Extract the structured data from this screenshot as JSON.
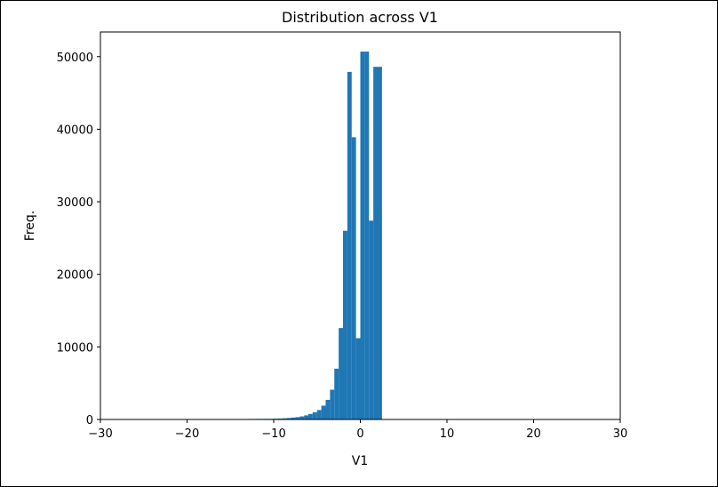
{
  "chart_data": {
    "type": "bar",
    "title": "Distribution across V1",
    "xlabel": "V1",
    "ylabel": "Freq.",
    "xlim": [
      -30,
      30
    ],
    "ylim": [
      0,
      53400
    ],
    "xticks": [
      -30,
      -20,
      -10,
      0,
      10,
      20,
      30
    ],
    "xtick_labels": [
      "−30",
      "−20",
      "−10",
      "0",
      "10",
      "20",
      "30"
    ],
    "yticks": [
      0,
      10000,
      20000,
      30000,
      40000,
      50000
    ],
    "ytick_labels": [
      "0",
      "10000",
      "20000",
      "30000",
      "40000",
      "50000"
    ],
    "bar_color": "#1f77b4",
    "grid": false,
    "bins": [
      {
        "x0": -15.0,
        "x1": -14.5,
        "count": 60
      },
      {
        "x0": -14.5,
        "x1": -14.0,
        "count": 60
      },
      {
        "x0": -14.0,
        "x1": -13.5,
        "count": 60
      },
      {
        "x0": -13.5,
        "x1": -13.0,
        "count": 60
      },
      {
        "x0": -13.0,
        "x1": -12.5,
        "count": 70
      },
      {
        "x0": -12.5,
        "x1": -12.0,
        "count": 70
      },
      {
        "x0": -12.0,
        "x1": -11.5,
        "count": 80
      },
      {
        "x0": -11.5,
        "x1": -11.0,
        "count": 80
      },
      {
        "x0": -11.0,
        "x1": -10.5,
        "count": 90
      },
      {
        "x0": -10.5,
        "x1": -10.0,
        "count": 90
      },
      {
        "x0": -10.0,
        "x1": -9.5,
        "count": 110
      },
      {
        "x0": -9.5,
        "x1": -9.0,
        "count": 130
      },
      {
        "x0": -9.0,
        "x1": -8.5,
        "count": 160
      },
      {
        "x0": -8.5,
        "x1": -8.0,
        "count": 200
      },
      {
        "x0": -8.0,
        "x1": -7.5,
        "count": 250
      },
      {
        "x0": -7.5,
        "x1": -7.0,
        "count": 320
      },
      {
        "x0": -7.0,
        "x1": -6.5,
        "count": 420
      },
      {
        "x0": -6.5,
        "x1": -6.0,
        "count": 560
      },
      {
        "x0": -6.0,
        "x1": -5.5,
        "count": 760
      },
      {
        "x0": -5.5,
        "x1": -5.0,
        "count": 1000
      },
      {
        "x0": -5.0,
        "x1": -4.5,
        "count": 1300
      },
      {
        "x0": -4.5,
        "x1": -4.0,
        "count": 1900
      },
      {
        "x0": -4.0,
        "x1": -3.5,
        "count": 2700
      },
      {
        "x0": -3.5,
        "x1": -3.0,
        "count": 4100
      },
      {
        "x0": -3.0,
        "x1": -2.5,
        "count": 7000
      },
      {
        "x0": -2.5,
        "x1": -2.0,
        "count": 12600
      },
      {
        "x0": -2.0,
        "x1": -1.5,
        "count": 26000
      },
      {
        "x0": -1.5,
        "x1": -1.0,
        "count": 47900
      },
      {
        "x0": -1.0,
        "x1": -0.5,
        "count": 38900
      },
      {
        "x0": -0.5,
        "x1": 0.0,
        "count": 11200
      },
      {
        "x0": 0.0,
        "x1": 0.5,
        "count": 50700
      },
      {
        "x0": 0.5,
        "x1": 1.0,
        "count": 50700
      },
      {
        "x0": 1.0,
        "x1": 1.5,
        "count": 27400
      },
      {
        "x0": 1.5,
        "x1": 2.0,
        "count": 48600
      },
      {
        "x0": 2.0,
        "x1": 2.5,
        "count": 48600
      }
    ]
  }
}
